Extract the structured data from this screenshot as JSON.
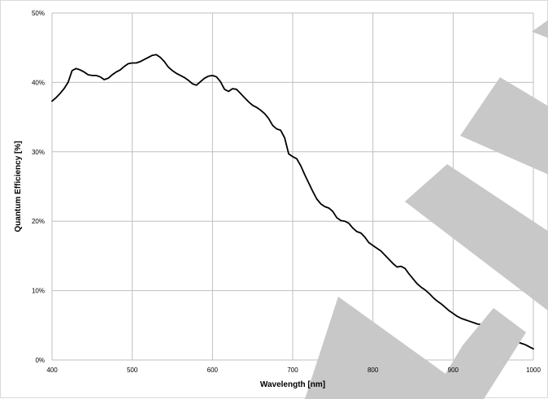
{
  "chart_data": {
    "type": "line",
    "title": "",
    "xlabel": "Wavelength [nm]",
    "ylabel": "Quantum Efficiency [%]",
    "xlim": [
      400,
      1000
    ],
    "ylim": [
      0,
      50
    ],
    "x_ticks": [
      400,
      500,
      600,
      700,
      800,
      900,
      1000
    ],
    "y_ticks": [
      0,
      10,
      20,
      30,
      40,
      50
    ],
    "x_tick_labels": [
      "400",
      "500",
      "600",
      "700",
      "800",
      "900",
      "1000"
    ],
    "y_tick_labels": [
      "0%",
      "10%",
      "20%",
      "30%",
      "40%",
      "50%"
    ],
    "grid": true,
    "legend": "none",
    "colors": {
      "line": "#000000",
      "grid": "#bfbfbf",
      "watermark": "#c8c8c8"
    },
    "series": [
      {
        "x": [
          400,
          405,
          410,
          415,
          420,
          425,
          430,
          435,
          440,
          445,
          450,
          455,
          460,
          465,
          470,
          475,
          480,
          485,
          490,
          495,
          500,
          505,
          510,
          515,
          520,
          525,
          530,
          535,
          540,
          545,
          550,
          555,
          560,
          565,
          570,
          575,
          580,
          585,
          590,
          595,
          600,
          605,
          610,
          615,
          620,
          625,
          630,
          635,
          640,
          645,
          650,
          655,
          660,
          665,
          670,
          675,
          680,
          685,
          690,
          695,
          700,
          705,
          710,
          715,
          720,
          725,
          730,
          735,
          740,
          745,
          750,
          755,
          760,
          765,
          770,
          775,
          780,
          785,
          790,
          795,
          800,
          805,
          810,
          815,
          820,
          825,
          830,
          835,
          840,
          845,
          850,
          855,
          860,
          865,
          870,
          875,
          880,
          885,
          890,
          895,
          900,
          905,
          910,
          915,
          920,
          925,
          930,
          935,
          940,
          945,
          950,
          955,
          960,
          965,
          970,
          975,
          980,
          985,
          990,
          995,
          1000
        ],
        "y": [
          37.3,
          37.8,
          38.4,
          39.1,
          40.0,
          41.7,
          42.0,
          41.8,
          41.5,
          41.1,
          41.0,
          41.0,
          40.8,
          40.4,
          40.6,
          41.1,
          41.5,
          41.8,
          42.3,
          42.7,
          42.8,
          42.8,
          43.0,
          43.3,
          43.6,
          43.9,
          44.0,
          43.6,
          43.0,
          42.2,
          41.7,
          41.3,
          41.0,
          40.7,
          40.3,
          39.8,
          39.6,
          40.1,
          40.6,
          40.9,
          41.0,
          40.8,
          40.1,
          39.0,
          38.7,
          39.1,
          39.0,
          38.4,
          37.8,
          37.2,
          36.7,
          36.4,
          36.0,
          35.5,
          34.8,
          33.8,
          33.3,
          33.1,
          32.0,
          29.7,
          29.3,
          29.0,
          28.0,
          26.7,
          25.5,
          24.3,
          23.2,
          22.5,
          22.1,
          21.9,
          21.4,
          20.5,
          20.1,
          20.0,
          19.7,
          19.0,
          18.5,
          18.3,
          17.7,
          16.9,
          16.5,
          16.1,
          15.7,
          15.1,
          14.5,
          13.9,
          13.4,
          13.5,
          13.2,
          12.4,
          11.7,
          11.0,
          10.5,
          10.1,
          9.6,
          9.0,
          8.5,
          8.1,
          7.6,
          7.1,
          6.7,
          6.3,
          6.0,
          5.8,
          5.6,
          5.4,
          5.2,
          5.1,
          4.8,
          4.2,
          3.6,
          3.3,
          3.1,
          2.9,
          2.8,
          2.7,
          2.6,
          2.4,
          2.2,
          1.9,
          1.6
        ]
      }
    ]
  }
}
